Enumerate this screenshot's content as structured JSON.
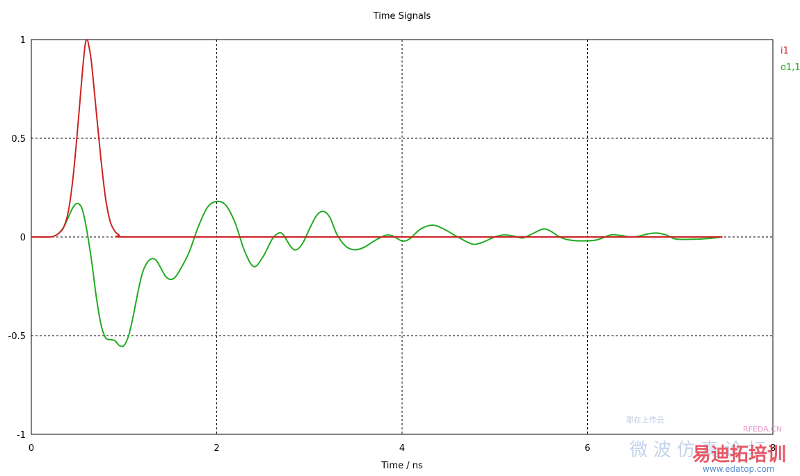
{
  "chart_data": {
    "type": "line",
    "title": "Time Signals",
    "xlabel": "Time / ns",
    "ylabel": "",
    "xlim": [
      0,
      8
    ],
    "ylim": [
      -1,
      1
    ],
    "x_ticks": [
      "0",
      "2",
      "4",
      "6",
      "8"
    ],
    "y_ticks": [
      "1",
      "0.5",
      "0",
      "-0.5",
      "-1"
    ],
    "x_tick_values": [
      0,
      2,
      4,
      6,
      8
    ],
    "y_tick_values": [
      1,
      0.5,
      0,
      -0.5,
      -1
    ],
    "grid": true,
    "legend_position": "right",
    "series": [
      {
        "name": "i1",
        "color": "#cc2222",
        "points": [
          [
            0.0,
            0.0
          ],
          [
            0.2,
            0.0
          ],
          [
            0.25,
            0.005
          ],
          [
            0.3,
            0.02
          ],
          [
            0.35,
            0.05
          ],
          [
            0.4,
            0.13
          ],
          [
            0.45,
            0.3
          ],
          [
            0.5,
            0.55
          ],
          [
            0.55,
            0.83
          ],
          [
            0.58,
            0.97
          ],
          [
            0.6,
            1.0
          ],
          [
            0.62,
            0.97
          ],
          [
            0.65,
            0.88
          ],
          [
            0.7,
            0.64
          ],
          [
            0.75,
            0.4
          ],
          [
            0.8,
            0.2
          ],
          [
            0.85,
            0.08
          ],
          [
            0.9,
            0.03
          ],
          [
            0.95,
            0.008
          ],
          [
            1.0,
            0.0
          ],
          [
            2.0,
            0.0
          ],
          [
            4.0,
            0.0
          ],
          [
            6.0,
            0.0
          ],
          [
            7.45,
            0.0
          ]
        ]
      },
      {
        "name": "o1,1",
        "color": "#22aa22",
        "points": [
          [
            0.0,
            0.0
          ],
          [
            0.2,
            0.0
          ],
          [
            0.25,
            0.005
          ],
          [
            0.3,
            0.02
          ],
          [
            0.35,
            0.05
          ],
          [
            0.4,
            0.1
          ],
          [
            0.45,
            0.15
          ],
          [
            0.5,
            0.17
          ],
          [
            0.55,
            0.14
          ],
          [
            0.6,
            0.03
          ],
          [
            0.65,
            -0.12
          ],
          [
            0.7,
            -0.3
          ],
          [
            0.75,
            -0.44
          ],
          [
            0.8,
            -0.51
          ],
          [
            0.85,
            -0.52
          ],
          [
            0.9,
            -0.525
          ],
          [
            0.95,
            -0.55
          ],
          [
            1.0,
            -0.55
          ],
          [
            1.05,
            -0.5
          ],
          [
            1.1,
            -0.4
          ],
          [
            1.15,
            -0.28
          ],
          [
            1.2,
            -0.18
          ],
          [
            1.25,
            -0.13
          ],
          [
            1.3,
            -0.11
          ],
          [
            1.35,
            -0.12
          ],
          [
            1.4,
            -0.16
          ],
          [
            1.45,
            -0.2
          ],
          [
            1.5,
            -0.215
          ],
          [
            1.55,
            -0.205
          ],
          [
            1.6,
            -0.17
          ],
          [
            1.7,
            -0.08
          ],
          [
            1.8,
            0.05
          ],
          [
            1.9,
            0.15
          ],
          [
            2.0,
            0.18
          ],
          [
            2.1,
            0.16
          ],
          [
            2.2,
            0.07
          ],
          [
            2.3,
            -0.07
          ],
          [
            2.4,
            -0.15
          ],
          [
            2.5,
            -0.1
          ],
          [
            2.6,
            -0.01
          ],
          [
            2.67,
            0.02
          ],
          [
            2.72,
            0.01
          ],
          [
            2.8,
            -0.05
          ],
          [
            2.86,
            -0.065
          ],
          [
            2.93,
            -0.03
          ],
          [
            3.0,
            0.04
          ],
          [
            3.08,
            0.11
          ],
          [
            3.15,
            0.13
          ],
          [
            3.22,
            0.1
          ],
          [
            3.3,
            0.01
          ],
          [
            3.4,
            -0.05
          ],
          [
            3.5,
            -0.065
          ],
          [
            3.6,
            -0.05
          ],
          [
            3.7,
            -0.02
          ],
          [
            3.8,
            0.005
          ],
          [
            3.85,
            0.01
          ],
          [
            3.9,
            0.005
          ],
          [
            4.0,
            -0.02
          ],
          [
            4.08,
            -0.01
          ],
          [
            4.2,
            0.04
          ],
          [
            4.33,
            0.06
          ],
          [
            4.45,
            0.04
          ],
          [
            4.6,
            0.0
          ],
          [
            4.75,
            -0.035
          ],
          [
            4.85,
            -0.03
          ],
          [
            5.0,
            0.0
          ],
          [
            5.1,
            0.01
          ],
          [
            5.2,
            0.005
          ],
          [
            5.3,
            -0.005
          ],
          [
            5.4,
            0.015
          ],
          [
            5.52,
            0.04
          ],
          [
            5.6,
            0.03
          ],
          [
            5.7,
            0.0
          ],
          [
            5.8,
            -0.015
          ],
          [
            5.95,
            -0.02
          ],
          [
            6.1,
            -0.015
          ],
          [
            6.25,
            0.01
          ],
          [
            6.35,
            0.008
          ],
          [
            6.5,
            0.0
          ],
          [
            6.65,
            0.015
          ],
          [
            6.75,
            0.02
          ],
          [
            6.85,
            0.01
          ],
          [
            6.95,
            -0.01
          ],
          [
            7.1,
            -0.012
          ],
          [
            7.3,
            -0.008
          ],
          [
            7.45,
            0.0
          ]
        ]
      }
    ]
  },
  "watermark": {
    "line1": "微波仿真论坛",
    "line2": "易迪拓培训",
    "brand": "RFEDA.CN",
    "url": "www.edatop.com",
    "small_text": "耶在上传云"
  }
}
